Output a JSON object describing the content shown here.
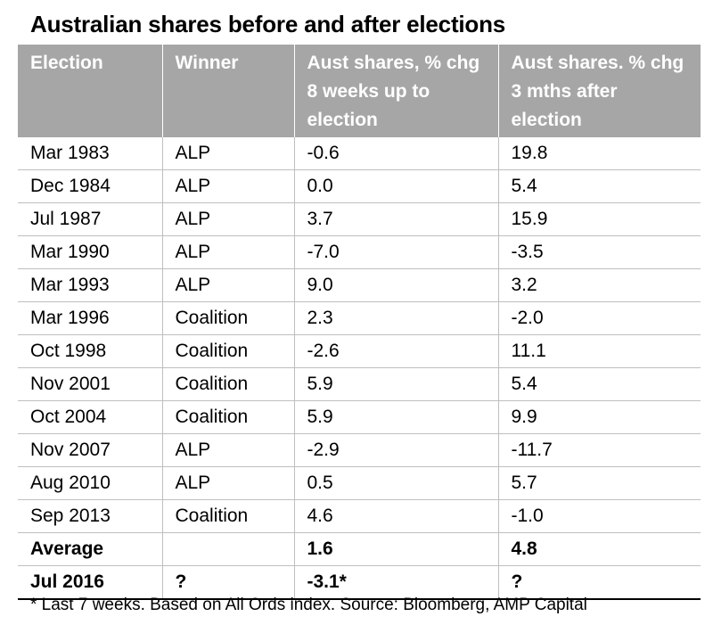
{
  "title": "Australian shares before and after elections",
  "table": {
    "headers": [
      "Election",
      "Winner",
      "Aust shares, % chg  8 weeks up to election",
      "Aust shares. % chg 3 mths after election"
    ],
    "rows": [
      [
        "Mar 1983",
        "ALP",
        "-0.6",
        "19.8"
      ],
      [
        "Dec 1984",
        "ALP",
        "0.0",
        "5.4"
      ],
      [
        "Jul 1987",
        "ALP",
        "3.7",
        "15.9"
      ],
      [
        "Mar 1990",
        "ALP",
        "-7.0",
        "-3.5"
      ],
      [
        "Mar 1993",
        "ALP",
        "9.0",
        "3.2"
      ],
      [
        "Mar 1996",
        "Coalition",
        "2.3",
        "-2.0"
      ],
      [
        "Oct 1998",
        "Coalition",
        "-2.6",
        "11.1"
      ],
      [
        "Nov 2001",
        "Coalition",
        "5.9",
        "5.4"
      ],
      [
        "Oct 2004",
        "Coalition",
        "5.9",
        "9.9"
      ],
      [
        "Nov 2007",
        "ALP",
        "-2.9",
        "-11.7"
      ],
      [
        "Aug 2010",
        "ALP",
        "0.5",
        "5.7"
      ],
      [
        "Sep 2013",
        "Coalition",
        "4.6",
        "-1.0"
      ]
    ],
    "average": [
      "Average",
      "",
      "1.6",
      "4.8"
    ],
    "current": [
      "Jul 2016",
      "?",
      "-3.1*",
      "?"
    ]
  },
  "footnote": "* Last 7 weeks. Based on All Ords index. Source: Bloomberg, AMP Capital",
  "colors": {
    "header_bg": "#a6a6a6",
    "header_text": "#ffffff",
    "grid": "#bfbfbf"
  }
}
